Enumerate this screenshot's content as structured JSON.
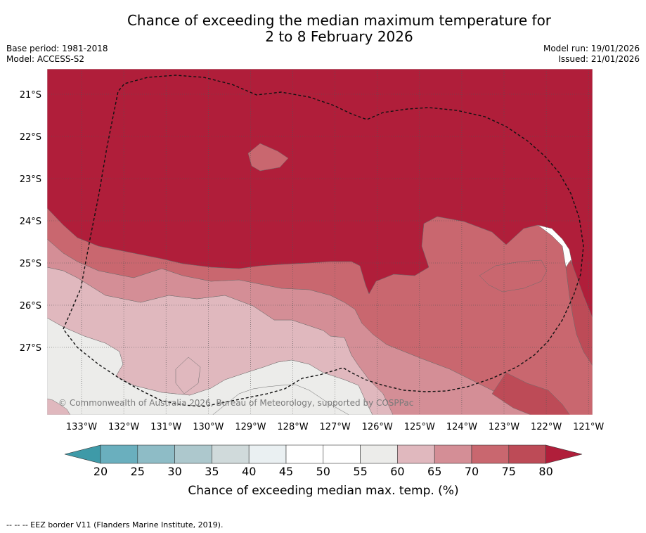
{
  "title": {
    "line1": "Chance of exceeding the median maximum temperature for",
    "line2": "2 to 8 February 2026"
  },
  "meta": {
    "base_period": "Base period: 1981-2018",
    "model": "Model: ACCESS-S2",
    "model_run": "Model run: 19/01/2026",
    "issued": "Issued: 21/01/2026"
  },
  "map": {
    "lon_labels": [
      "133°W",
      "132°W",
      "131°W",
      "130°W",
      "129°W",
      "128°W",
      "127°W",
      "126°W",
      "125°W",
      "124°W",
      "123°W",
      "122°W",
      "121°W"
    ],
    "lat_labels": [
      "21°S",
      "22°S",
      "23°S",
      "24°S",
      "25°S",
      "26°S",
      "27°S"
    ],
    "copyright": "© Commonwealth of Australia 2026, Bureau of Meteorology, supported by COSPPac",
    "colors": {
      "lt20": "#3e9aa8",
      "20_25": "#6aafbe",
      "25_30": "#8ebcc6",
      "30_35": "#adc8cd",
      "35_40": "#d0dadb",
      "40_45": "#eaf0f2",
      "45_50": "#ffffff",
      "50_55": "#ffffff",
      "55_60": "#ececea",
      "60_65": "#e0b8be",
      "65_70": "#d48e96",
      "70_75": "#c9676f",
      "75_80": "#bd4b57",
      "gt80": "#b01e3a"
    }
  },
  "colorbar": {
    "ticks": [
      "20",
      "25",
      "30",
      "35",
      "40",
      "45",
      "50",
      "55",
      "60",
      "65",
      "70",
      "75",
      "80"
    ],
    "label": "Chance of exceeding median max. temp. (%)"
  },
  "footnote": "--  --  -- EEZ border V11 (Flanders Marine Institute, 2019)."
}
